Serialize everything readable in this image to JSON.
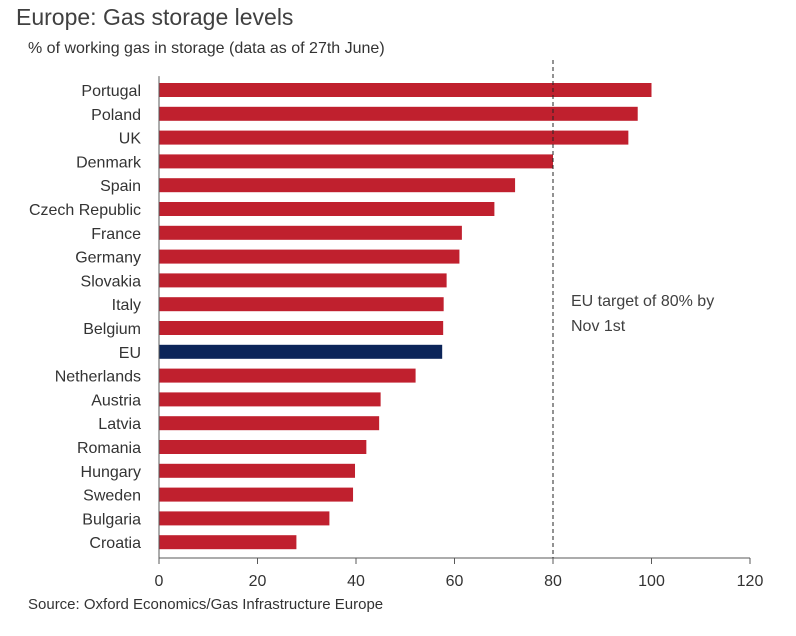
{
  "chart_data": {
    "type": "bar",
    "orientation": "horizontal",
    "title": "Europe: Gas storage levels",
    "subtitle": "% of working gas in storage (data as of 27th June)",
    "source": "Source: Oxford Economics/Gas Infrastructure Europe",
    "categories": [
      "Portugal",
      "Poland",
      "UK",
      "Denmark",
      "Spain",
      "Czech Republic",
      "France",
      "Germany",
      "Slovakia",
      "Italy",
      "Belgium",
      "EU",
      "Netherlands",
      "Austria",
      "Latvia",
      "Romania",
      "Hungary",
      "Sweden",
      "Bulgaria",
      "Croatia"
    ],
    "values": [
      100,
      97.2,
      95.3,
      80,
      72.3,
      68.1,
      61.5,
      61.0,
      58.4,
      57.8,
      57.7,
      57.5,
      52.1,
      45.0,
      44.7,
      42.1,
      39.8,
      39.4,
      34.6,
      27.9
    ],
    "bar_color": "#c0202e",
    "highlight": {
      "category": "EU",
      "color": "#0c2559"
    },
    "xlim": [
      0,
      120
    ],
    "xticks": [
      0,
      20,
      40,
      60,
      80,
      100,
      120
    ],
    "xlabel": "",
    "ylabel": "",
    "grid": false,
    "reference_line": {
      "value": 80,
      "style": "dashed",
      "label_lines": [
        "EU target of 80% by",
        "Nov 1st"
      ]
    }
  }
}
